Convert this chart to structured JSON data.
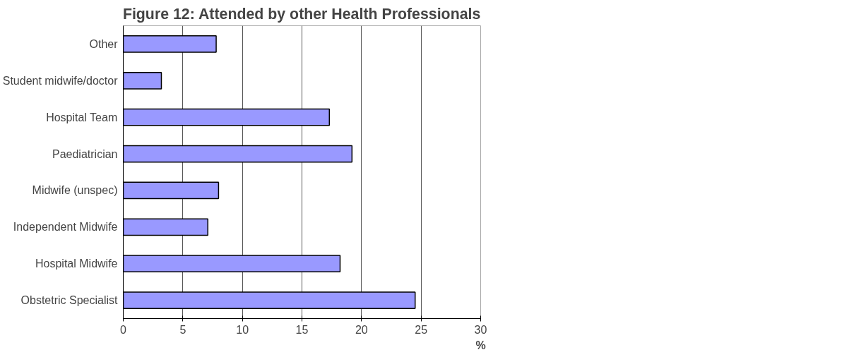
{
  "chart_data": {
    "type": "bar",
    "orientation": "horizontal",
    "title": "Figure 12: Attended by other Health Professionals",
    "xlabel": "%",
    "categories": [
      "Other",
      "Student midwife/doctor",
      "Hospital Team",
      "Paediatrician",
      "Midwife (unspec)",
      "Independent Midwife",
      "Hospital Midwife",
      "Obstetric Specialist"
    ],
    "values": [
      7.8,
      3.2,
      17.3,
      19.2,
      8.0,
      7.1,
      18.2,
      24.5
    ],
    "color": "#9999ff",
    "xlim": [
      0,
      30
    ],
    "xticks": [
      0,
      5,
      10,
      15,
      20,
      25,
      30
    ],
    "grid": "x"
  }
}
